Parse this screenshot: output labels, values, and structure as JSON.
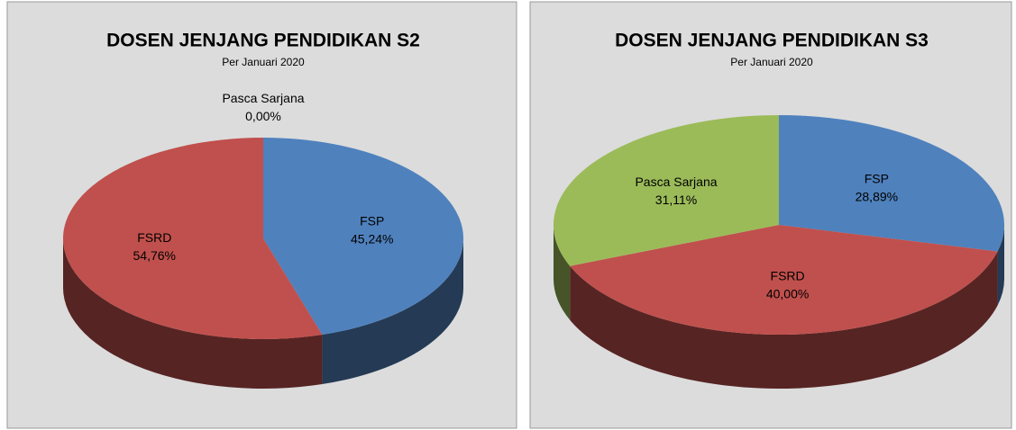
{
  "chart_data": [
    {
      "type": "pie3d",
      "title": "DOSEN JENJANG PENDIDIKAN S2",
      "subtitle": "Per Januari 2020",
      "categories": [
        "FSP",
        "FSRD",
        "Pasca Sarjana"
      ],
      "values": [
        45.24,
        54.76,
        0
      ],
      "value_labels": [
        "45,24%",
        "54,76%",
        "0,00%"
      ],
      "colors": [
        "#4f81bd",
        "#c0504d",
        "#9bbb59"
      ]
    },
    {
      "type": "pie3d",
      "title": "DOSEN JENJANG PENDIDIKAN S3",
      "subtitle": "Per Januari 2020",
      "categories": [
        "FSP",
        "FSRD",
        "Pasca Sarjana"
      ],
      "values": [
        28.89,
        40,
        31.11
      ],
      "value_labels": [
        "28,89%",
        "40,00%",
        "31,11%"
      ],
      "colors": [
        "#4f81bd",
        "#c0504d",
        "#9bbb59"
      ]
    }
  ]
}
